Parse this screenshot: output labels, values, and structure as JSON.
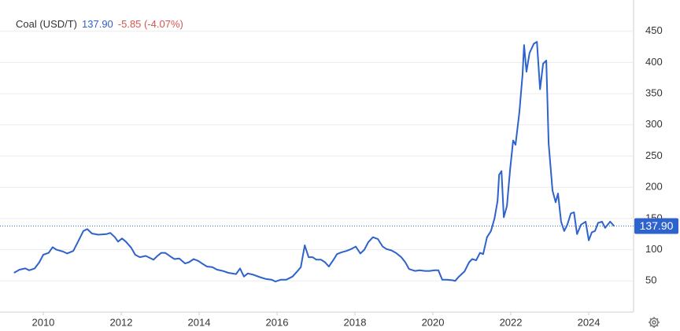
{
  "chart_data": {
    "type": "line",
    "title": "Coal (USD/T)",
    "change": "-5.85 (-4.07%)",
    "last_price": {
      "value": 137.9,
      "label": "137.90"
    },
    "xlim": [
      2008.89,
      2025.15
    ],
    "xticks": [
      2010,
      2012,
      2014,
      2016,
      2018,
      2020,
      2022,
      2024
    ],
    "ylim": [
      0,
      500
    ],
    "yticks": [
      50,
      100,
      150,
      200,
      250,
      300,
      350,
      400,
      450
    ],
    "grid": true,
    "series": [
      {
        "name": "Coal",
        "color": "#2e62cc",
        "x": [
          2009.25,
          2009.39,
          2009.54,
          2009.64,
          2009.78,
          2009.9,
          2010.0,
          2010.14,
          2010.24,
          2010.34,
          2010.51,
          2010.61,
          2010.77,
          2010.91,
          2011.03,
          2011.13,
          2011.25,
          2011.41,
          2011.62,
          2011.72,
          2011.84,
          2011.92,
          2012.02,
          2012.12,
          2012.26,
          2012.36,
          2012.48,
          2012.63,
          2012.73,
          2012.83,
          2012.93,
          2013.03,
          2013.13,
          2013.29,
          2013.37,
          2013.49,
          2013.64,
          2013.74,
          2013.86,
          2013.98,
          2014.1,
          2014.2,
          2014.34,
          2014.46,
          2014.61,
          2014.75,
          2014.95,
          2015.05,
          2015.15,
          2015.25,
          2015.39,
          2015.56,
          2015.72,
          2015.86,
          2015.96,
          2016.1,
          2016.24,
          2016.4,
          2016.53,
          2016.61,
          2016.71,
          2016.81,
          2016.91,
          2017.01,
          2017.13,
          2017.23,
          2017.33,
          2017.45,
          2017.54,
          2017.66,
          2017.78,
          2017.9,
          2018.02,
          2018.14,
          2018.24,
          2018.34,
          2018.46,
          2018.59,
          2018.71,
          2018.81,
          2018.93,
          2019.05,
          2019.19,
          2019.29,
          2019.39,
          2019.54,
          2019.66,
          2019.8,
          2019.92,
          2020.04,
          2020.14,
          2020.24,
          2020.36,
          2020.51,
          2020.57,
          2020.67,
          2020.81,
          2020.93,
          2021.01,
          2021.11,
          2021.21,
          2021.29,
          2021.39,
          2021.49,
          2021.58,
          2021.66,
          2021.7,
          2021.76,
          2021.82,
          2021.9,
          2021.98,
          2022.06,
          2022.12,
          2022.22,
          2022.3,
          2022.34,
          2022.4,
          2022.48,
          2022.59,
          2022.67,
          2022.75,
          2022.83,
          2022.91,
          2022.97,
          2023.07,
          2023.15,
          2023.21,
          2023.29,
          2023.37,
          2023.45,
          2023.54,
          2023.62,
          2023.7,
          2023.8,
          2023.92,
          2024.0,
          2024.08,
          2024.16,
          2024.24,
          2024.34,
          2024.42,
          2024.55,
          2024.65
        ],
        "values": [
          63,
          68,
          70,
          67,
          70,
          80,
          92,
          95,
          104,
          100,
          97,
          94,
          98,
          115,
          130,
          133,
          126,
          124,
          125,
          127,
          120,
          113,
          118,
          113,
          103,
          92,
          88,
          90,
          87,
          84,
          90,
          95,
          95,
          88,
          85,
          86,
          78,
          80,
          85,
          82,
          77,
          73,
          72,
          68,
          66,
          63,
          61,
          70,
          57,
          62,
          60,
          56,
          53,
          52,
          49,
          52,
          52,
          57,
          66,
          72,
          107,
          88,
          88,
          84,
          84,
          80,
          73,
          84,
          93,
          96,
          98,
          101,
          105,
          94,
          100,
          112,
          120,
          117,
          105,
          101,
          99,
          95,
          88,
          80,
          69,
          66,
          67,
          66,
          66,
          67,
          67,
          52,
          52,
          51,
          50,
          57,
          65,
          80,
          85,
          83,
          95,
          93,
          120,
          130,
          150,
          178,
          220,
          226,
          152,
          170,
          228,
          275,
          268,
          320,
          380,
          428,
          385,
          415,
          430,
          433,
          357,
          398,
          403,
          270,
          195,
          176,
          190,
          145,
          130,
          140,
          158,
          160,
          125,
          140,
          145,
          115,
          128,
          130,
          143,
          145,
          135,
          145,
          137.9
        ]
      }
    ]
  }
}
